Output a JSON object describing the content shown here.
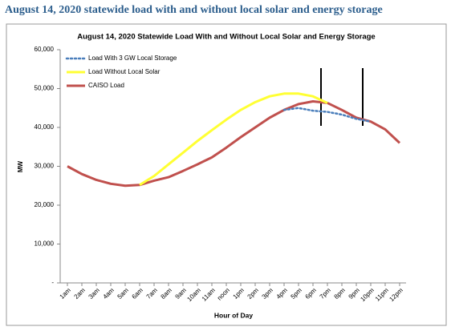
{
  "heading": "August 14, 2020 statewide load with and without local solar and energy storage",
  "chart_data": {
    "type": "line",
    "title": "August 14, 2020 Statewide Load With and Without Local Solar and Energy Storage",
    "x_label": "Hour of Day",
    "y_label": "MW",
    "categories": [
      "1am",
      "2am",
      "3am",
      "4am",
      "5am",
      "6am",
      "7am",
      "8am",
      "9am",
      "10am",
      "11am",
      "noon",
      "1pm",
      "2pm",
      "3pm",
      "4pm",
      "5pm",
      "6pm",
      "7pm",
      "8pm",
      "9pm",
      "10pm",
      "11pm",
      "12pm"
    ],
    "series": [
      {
        "name": "Load With 3 GW Local Storage",
        "color": "#4a7ebb",
        "dash": "dotted",
        "values": [
          null,
          null,
          null,
          null,
          null,
          null,
          null,
          null,
          null,
          null,
          null,
          null,
          null,
          null,
          null,
          44500,
          45000,
          44300,
          44000,
          43300,
          42200,
          41500,
          null,
          null
        ]
      },
      {
        "name": "Load Without Local Solar",
        "color": "#ffff33",
        "dash": "solid",
        "values": [
          null,
          null,
          null,
          null,
          null,
          25200,
          27500,
          30500,
          33500,
          36500,
          39300,
          42000,
          44500,
          46500,
          48000,
          48700,
          48700,
          48000,
          46300,
          null,
          null,
          null,
          null,
          null
        ]
      },
      {
        "name": "CAISO Load",
        "color": "#c0504d",
        "dash": "solid",
        "values": [
          30000,
          28000,
          26500,
          25500,
          25000,
          25200,
          26300,
          27200,
          28800,
          30500,
          32300,
          34800,
          37500,
          40000,
          42500,
          44500,
          46000,
          46700,
          46300,
          44500,
          42500,
          41500,
          39500,
          36000
        ]
      }
    ],
    "ylim": [
      0,
      60000
    ],
    "yticks": [
      {
        "value": 0,
        "label": "-"
      },
      {
        "value": 10000,
        "label": "10,000"
      },
      {
        "value": 20000,
        "label": "20,000"
      },
      {
        "value": 30000,
        "label": "30,000"
      },
      {
        "value": 40000,
        "label": "40,000"
      },
      {
        "value": 50000,
        "label": "50,000"
      },
      {
        "value": 60000,
        "label": "60,000"
      }
    ],
    "grid": false,
    "legend": "top-left"
  }
}
